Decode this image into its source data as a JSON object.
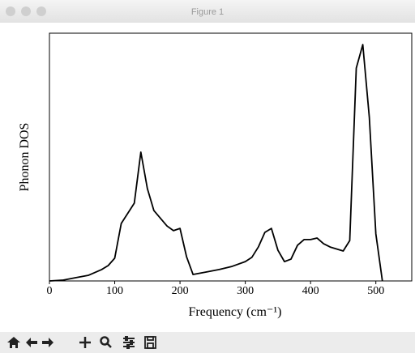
{
  "window": {
    "title": "Figure 1"
  },
  "chart_data": {
    "type": "line",
    "xlabel": "Frequency (cm⁻¹)",
    "ylabel": "Phonon DOS",
    "x": [
      0,
      20,
      40,
      60,
      80,
      90,
      100,
      110,
      130,
      140,
      150,
      160,
      180,
      190,
      200,
      210,
      220,
      240,
      260,
      280,
      300,
      310,
      320,
      330,
      340,
      350,
      360,
      370,
      380,
      390,
      400,
      410,
      420,
      430,
      450,
      460,
      470,
      480,
      490,
      500,
      510
    ],
    "values": [
      0,
      0.003,
      0.013,
      0.023,
      0.046,
      0.062,
      0.092,
      0.232,
      0.314,
      0.52,
      0.373,
      0.284,
      0.222,
      0.203,
      0.212,
      0.098,
      0.026,
      0.036,
      0.046,
      0.059,
      0.078,
      0.095,
      0.137,
      0.196,
      0.212,
      0.124,
      0.078,
      0.088,
      0.144,
      0.167,
      0.167,
      0.173,
      0.15,
      0.137,
      0.121,
      0.163,
      0.859,
      0.954,
      0.66,
      0.19,
      0
    ],
    "color": "#000000",
    "xlim": [
      0,
      555
    ],
    "ylim": [
      0,
      1
    ],
    "xticks": [
      0,
      100,
      200,
      300,
      400,
      500
    ]
  }
}
